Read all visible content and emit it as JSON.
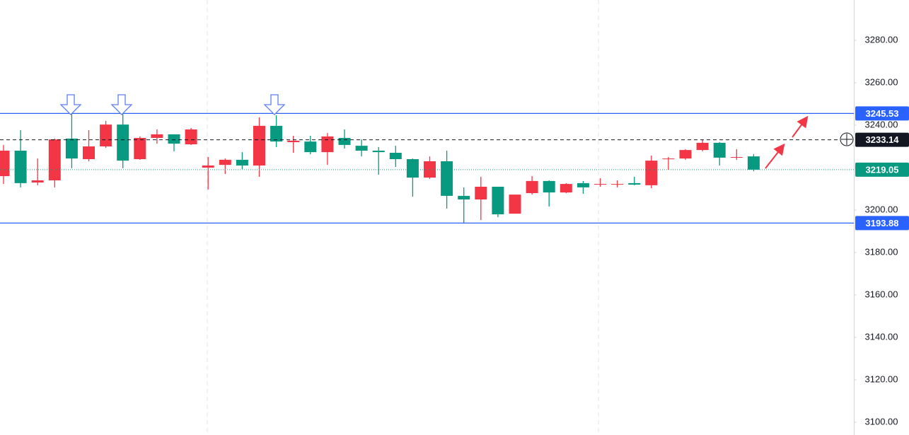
{
  "chart_data": {
    "type": "candlestick",
    "ylim": [
      3094,
      3299
    ],
    "yticks": [
      {
        "value": 3100,
        "label": "3100.00"
      },
      {
        "value": 3120,
        "label": "3120.00"
      },
      {
        "value": 3140,
        "label": "3140.00"
      },
      {
        "value": 3160,
        "label": "3160.00"
      },
      {
        "value": 3180,
        "label": "3180.00"
      },
      {
        "value": 3200,
        "label": "3200.00"
      },
      {
        "value": 3220,
        "label": "3220.00"
      },
      {
        "value": 3240,
        "label": "3240.00"
      },
      {
        "value": 3260,
        "label": "3260.00"
      },
      {
        "value": 3280,
        "label": "3280.00"
      }
    ],
    "grid": false,
    "up_color": "#f23645",
    "down_color": "#089981",
    "open": [
      3216,
      3228,
      3213,
      3214,
      3233.7,
      3224,
      3230,
      3240.3,
      3224,
      3234,
      3235.7,
      3231,
      3220,
      3221.3,
      3223.7,
      3221,
      3239.7,
      3232,
      3232.3,
      3227.3,
      3234,
      3230.3,
      3228,
      3227,
      3224,
      3215.3,
      3223,
      3206.7,
      3205,
      3211,
      3198.3,
      3208,
      3213.7,
      3208.3,
      3212.7,
      3212,
      3212,
      3212.7,
      3211.7,
      3224,
      3224.3,
      3228.3,
      3231.7,
      3224.7,
      3225.3
    ],
    "high": [
      3230.7,
      3237.7,
      3224.3,
      3233.7,
      3245.7,
      3237.7,
      3242,
      3245.7,
      3234.7,
      3238,
      3235.7,
      3238.7,
      3225,
      3224.3,
      3227.3,
      3243.7,
      3244.7,
      3235,
      3235,
      3236.3,
      3238,
      3233.3,
      3229.7,
      3230.3,
      3224.3,
      3225.3,
      3228,
      3210.7,
      3215.7,
      3211,
      3207.3,
      3216,
      3214,
      3212.7,
      3213.7,
      3215,
      3214,
      3215.7,
      3225.7,
      3225,
      3228.7,
      3233,
      3232,
      3228.7,
      3226.3
    ],
    "low": [
      3212.3,
      3210.7,
      3211.7,
      3210.7,
      3219.7,
      3223,
      3229.3,
      3219.7,
      3223.7,
      3231.3,
      3227.7,
      3230.7,
      3209.7,
      3217,
      3219.3,
      3215.7,
      3229.7,
      3227,
      3226.3,
      3221.3,
      3229,
      3225.3,
      3216.7,
      3220.3,
      3206.3,
      3214.7,
      3200.7,
      3193.7,
      3195.3,
      3196.7,
      3198.3,
      3207.3,
      3201.7,
      3208,
      3207.7,
      3211,
      3210.7,
      3211.7,
      3210.3,
      3219,
      3223.7,
      3227.7,
      3221,
      3223.7,
      3218.3
    ],
    "close": [
      3228,
      3212.7,
      3214,
      3233.3,
      3224.3,
      3230,
      3240.3,
      3223.3,
      3234,
      3235.7,
      3231.3,
      3238,
      3221,
      3223.7,
      3221,
      3239.7,
      3232.3,
      3232.7,
      3227.3,
      3234.7,
      3230.7,
      3228,
      3227.3,
      3224,
      3215.3,
      3223,
      3206.7,
      3205,
      3211,
      3198,
      3207.3,
      3213.7,
      3208.3,
      3212.3,
      3210.7,
      3212.3,
      3212.3,
      3212,
      3223.3,
      3224.3,
      3228.3,
      3231.7,
      3224.7,
      3225,
      3219.05
    ],
    "price_lines": [
      {
        "value": 3245.53,
        "color": "#2962ff",
        "style": "solid",
        "label_color": "#2962ff"
      },
      {
        "value": 3193.88,
        "color": "#2962ff",
        "style": "solid",
        "label_color": "#2962ff"
      },
      {
        "value": 3233.14,
        "color": "#131722",
        "style": "dashed",
        "label_color": "#131722"
      },
      {
        "value": 3219.05,
        "color": "#089981",
        "style": "dotted",
        "label_color": "#089981"
      }
    ]
  }
}
